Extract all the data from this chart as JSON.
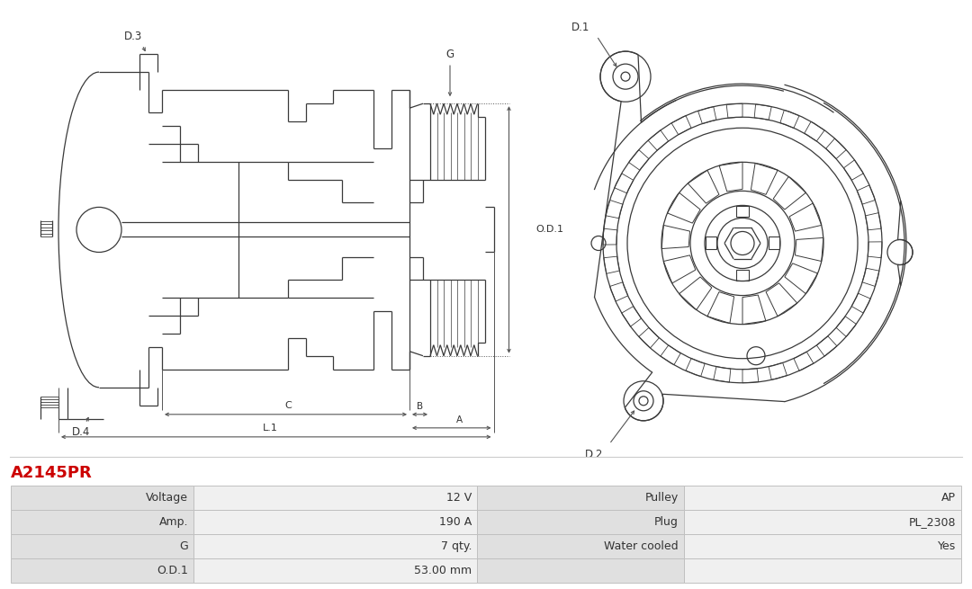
{
  "title": "A2145PR",
  "title_color": "#cc0000",
  "background_color": "#ffffff",
  "table_rows": [
    [
      "Voltage",
      "12 V",
      "Pulley",
      "AP"
    ],
    [
      "Amp.",
      "190 A",
      "Plug",
      "PL_2308"
    ],
    [
      "G",
      "7 qty.",
      "Water cooled",
      "Yes"
    ],
    [
      "O.D.1",
      "53.00 mm",
      "",
      ""
    ]
  ],
  "line_color": "#3a3a3a",
  "dim_line_color": "#555555",
  "dim_text_color": "#333333",
  "label_bg": "#e0e0e0",
  "value_bg": "#f0f0f0",
  "font_size_table": 9,
  "font_size_title": 13
}
